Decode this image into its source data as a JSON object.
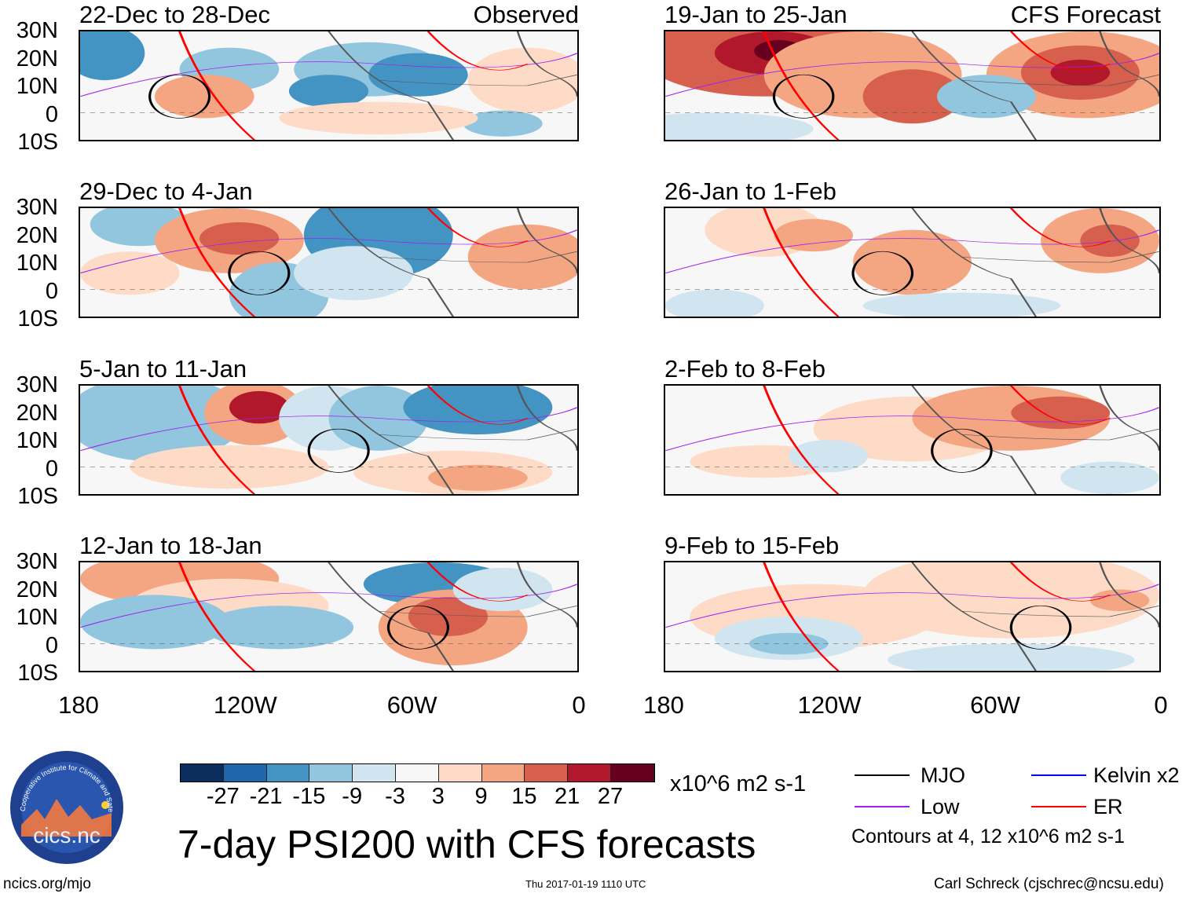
{
  "panels": [
    {
      "title": "22-Dec to 28-Dec",
      "label": "Observed"
    },
    {
      "title": "19-Jan to 25-Jan",
      "label": "CFS Forecast"
    },
    {
      "title": "29-Dec to 4-Jan"
    },
    {
      "title": "26-Jan to 1-Feb"
    },
    {
      "title": "5-Jan to 11-Jan"
    },
    {
      "title": "2-Feb to 8-Feb"
    },
    {
      "title": "12-Jan to 18-Jan"
    },
    {
      "title": "9-Feb to 15-Feb"
    }
  ],
  "lat_labels": [
    "30N",
    "20N",
    "10N",
    "0",
    "10S"
  ],
  "lon_labels": [
    "180",
    "120W",
    "60W",
    "0"
  ],
  "colorbar": {
    "colors": [
      "#0b2e5f",
      "#2166ac",
      "#4393c3",
      "#92c5de",
      "#d1e5f0",
      "#f7f7f7",
      "#fddbc7",
      "#f4a582",
      "#d6604d",
      "#b2182b",
      "#67001f"
    ],
    "ticks": [
      "-27",
      "-21",
      "-15",
      "-9",
      "-3",
      "3",
      "9",
      "15",
      "21",
      "27"
    ],
    "units": "x10^6 m2 s-1"
  },
  "legend": {
    "items": [
      {
        "label": "MJO",
        "color": "#000000"
      },
      {
        "label": "Kelvin x2",
        "color": "#0000ee"
      },
      {
        "label": "Low",
        "color": "#a020f0"
      },
      {
        "label": "ER",
        "color": "#ff0000"
      }
    ],
    "contours_note": "Contours at 4, 12 x10^6 m2 s-1"
  },
  "main_title": "7-day PSI200 with CFS forecasts",
  "footer": {
    "left": "ncics.org/mjo",
    "center": "Thu 2017-01-19 1110 UTC",
    "right": "Carl Schreck (cjschrec@ncsu.edu)"
  },
  "logo": {
    "arc_text": "Cooperative Institute for Climate and Satellites",
    "name": "cics.nc"
  }
}
